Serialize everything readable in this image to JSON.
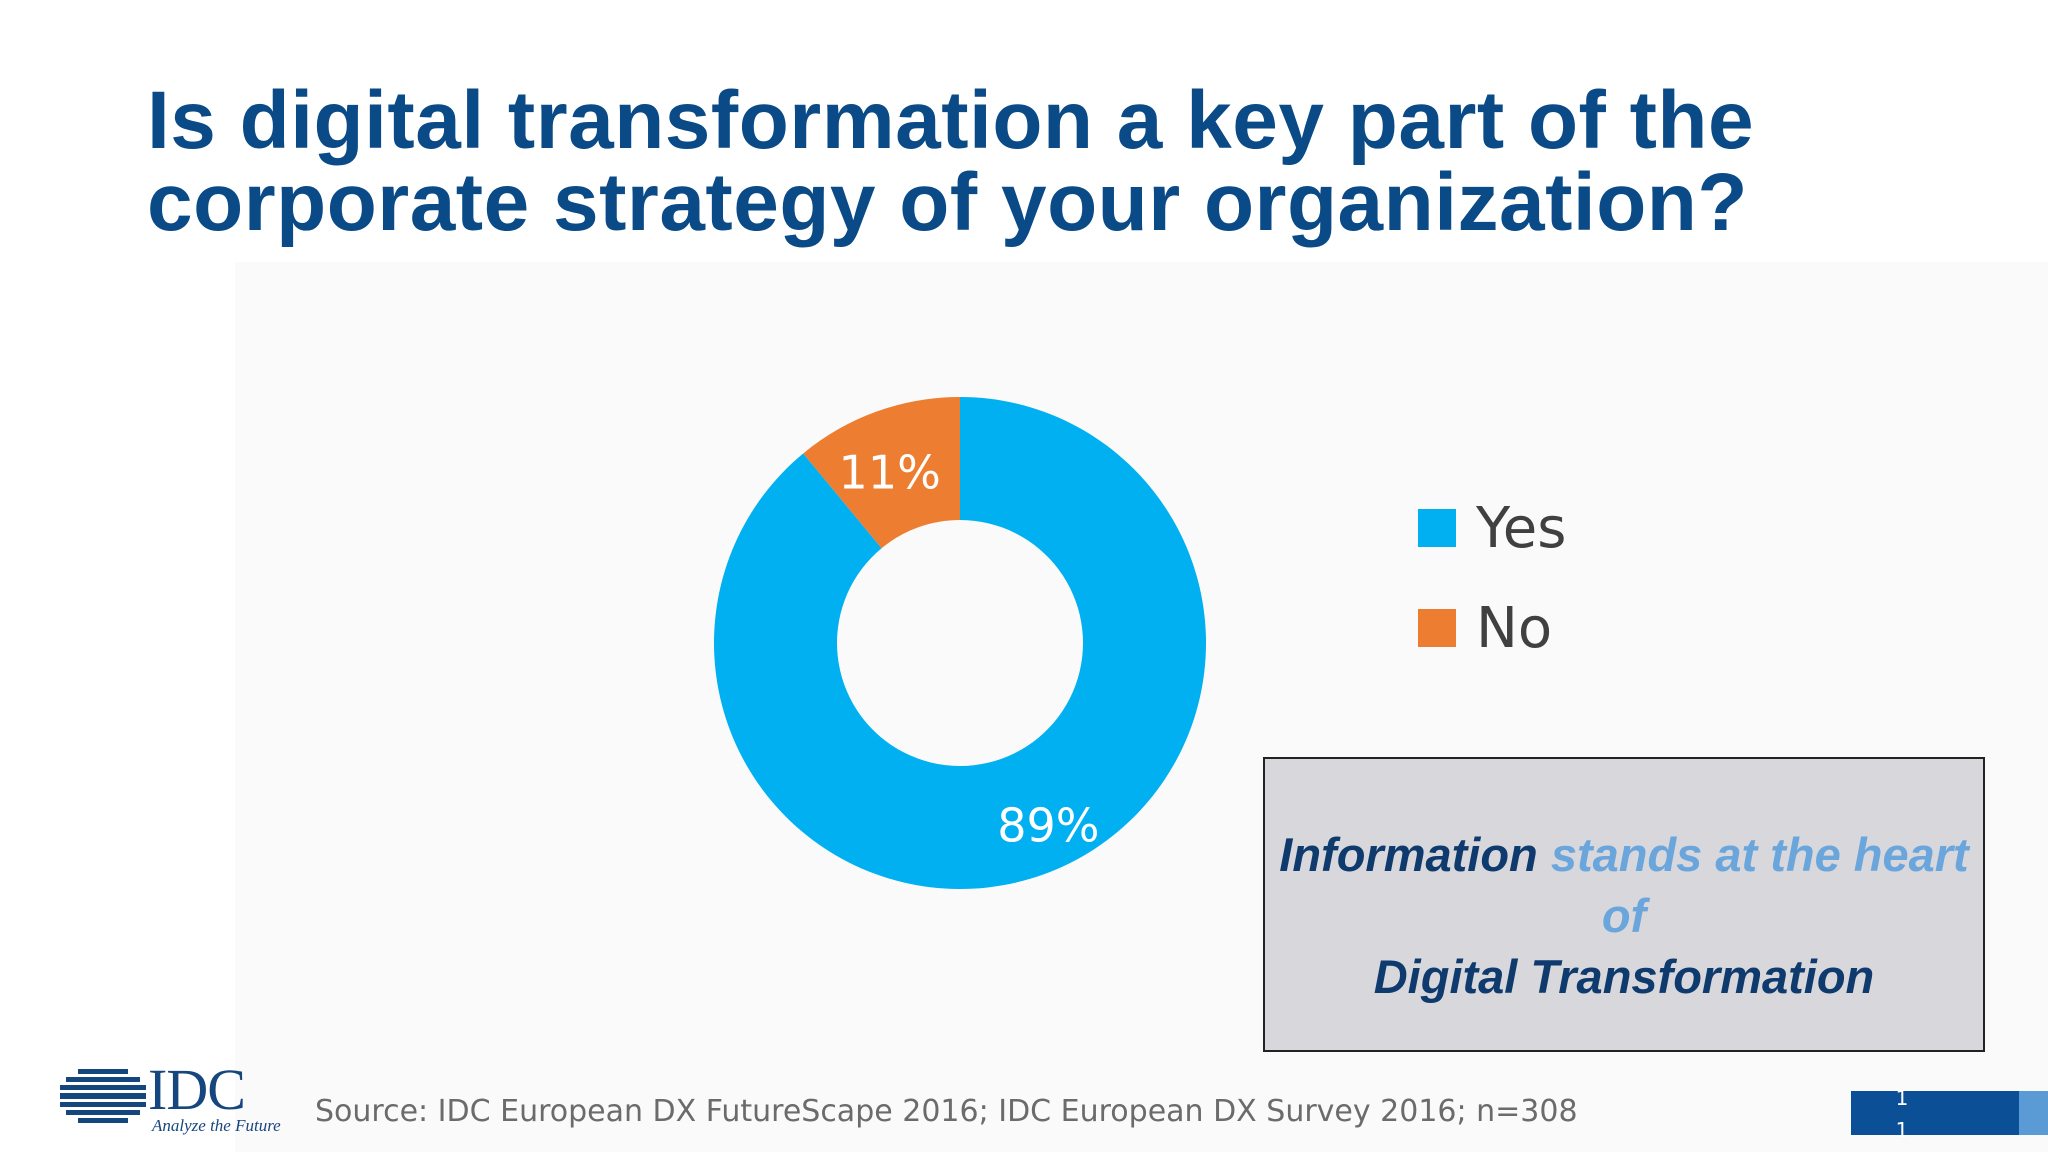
{
  "title": {
    "line1": "Is digital transformation a key part of the",
    "line2": "corporate strategy of your organization?"
  },
  "chart_data": {
    "type": "pie",
    "variant": "donut",
    "categories": [
      "Yes",
      "No"
    ],
    "values": [
      89,
      11
    ],
    "data_labels": [
      "89%",
      "11%"
    ],
    "colors": [
      "#00b0f0",
      "#ed7d31"
    ],
    "legend_position": "right"
  },
  "callout": {
    "part1": "Information",
    "part2": " stands at the heart of ",
    "part3": "Digital Transformation"
  },
  "logo": {
    "name": "IDC",
    "tagline": "Analyze the Future"
  },
  "footer": {
    "source": "Source: IDC European DX FutureScape 2016; IDC European DX Survey 2016; n=308",
    "page_number": "1\n1"
  }
}
